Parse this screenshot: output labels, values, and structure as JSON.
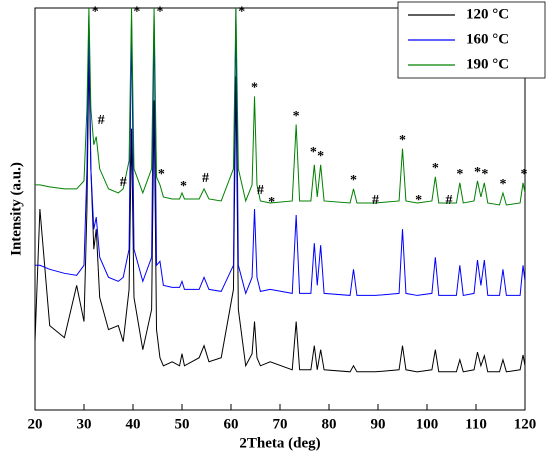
{
  "chart_data": {
    "type": "line",
    "xlabel": "2Theta (deg)",
    "ylabel": "Intensity (a.u.)",
    "xlim": [
      20,
      120
    ],
    "xticks": [
      20,
      30,
      40,
      50,
      60,
      70,
      80,
      90,
      100,
      110,
      120
    ],
    "ylim": [
      0,
      100
    ],
    "legend": "upper right",
    "x": [
      20,
      21,
      23,
      26,
      28.5,
      30,
      30.6,
      31,
      31.4,
      32,
      32.5,
      33.2,
      35,
      37,
      38,
      39.2,
      39.7,
      40.2,
      42,
      43.8,
      44.3,
      44.8,
      45.5,
      46.2,
      48,
      49.5,
      50,
      50.5,
      53.5,
      54.5,
      55.5,
      58,
      60.5,
      61,
      61.5,
      63,
      64.3,
      64.8,
      65.3,
      66,
      68,
      72.5,
      73.3,
      74,
      76.3,
      77,
      77.6,
      78.3,
      79,
      84.3,
      85,
      85.7,
      89.5,
      94.3,
      95,
      95.7,
      98,
      101,
      101.7,
      102.4,
      106,
      106.7,
      107.4,
      109.6,
      110.3,
      111,
      111.7,
      112.4,
      114.8,
      115.5,
      116.2,
      119,
      119.6,
      120
    ],
    "series": [
      {
        "name": "120 °C",
        "color": "#000000",
        "values": [
          17,
          50,
          21,
          18,
          31,
          22,
          50,
          88,
          60,
          40,
          45,
          28,
          20,
          21,
          17,
          30,
          70,
          28,
          15,
          25,
          77,
          20,
          13,
          11,
          12,
          11,
          14,
          11,
          13,
          16,
          12,
          13,
          30,
          83,
          25,
          11,
          14,
          22,
          13,
          11,
          12,
          10,
          22,
          10,
          10,
          16,
          10,
          15,
          10,
          9.5,
          11,
          9.5,
          9.5,
          10,
          16,
          10,
          9.5,
          10,
          15,
          9.5,
          9.5,
          12.5,
          9.5,
          10,
          14.4,
          11,
          13.5,
          9.5,
          9.5,
          12.5,
          9.5,
          10,
          13.7,
          11
        ]
      },
      {
        "name": "160 °C",
        "color": "#0000ff",
        "values": [
          36,
          36,
          35,
          34,
          33.5,
          36,
          60,
          98,
          60,
          45,
          48,
          38,
          33,
          32,
          33,
          40,
          97,
          40,
          32,
          38,
          98,
          36,
          37,
          31,
          30.5,
          30.5,
          32,
          30,
          30,
          33,
          30,
          29.5,
          36,
          100,
          36,
          29,
          33,
          50,
          33,
          29.5,
          30,
          29,
          48.5,
          29,
          29,
          41.5,
          31,
          41,
          29,
          28.5,
          35,
          28.5,
          28.5,
          29,
          45,
          29,
          28.5,
          29,
          38,
          28.5,
          28.5,
          36,
          28.5,
          29,
          37.3,
          31,
          37.3,
          28.5,
          28.5,
          35,
          28.5,
          28.5,
          36,
          32
        ]
      },
      {
        "name": "190 °C",
        "color": "#008000",
        "values": [
          56,
          56,
          55.5,
          55,
          55,
          57,
          75,
          100,
          75,
          66,
          68,
          60,
          55,
          54,
          55,
          62,
          100,
          60,
          54,
          60,
          100,
          58,
          56,
          53,
          52.5,
          52.5,
          54,
          52.5,
          52.5,
          55,
          52.5,
          52,
          60,
          100,
          60,
          52,
          56,
          78,
          56,
          52,
          51.5,
          52,
          71,
          52,
          52,
          61,
          53,
          61,
          52,
          51.5,
          55,
          51.5,
          51.5,
          52,
          65,
          52,
          51.5,
          52,
          58,
          51.5,
          51.5,
          56.5,
          51.5,
          52,
          57,
          53,
          56.5,
          51.5,
          51,
          54,
          51,
          51.5,
          56.5,
          54
        ]
      }
    ],
    "annotations": [
      {
        "text": "*",
        "x": 32.3,
        "y": 98
      },
      {
        "text": "*",
        "x": 40.8,
        "y": 98
      },
      {
        "text": "*",
        "x": 45.5,
        "y": 98
      },
      {
        "text": "*",
        "x": 62.2,
        "y": 98
      },
      {
        "text": "#",
        "x": 33.5,
        "y": 71
      },
      {
        "text": "#",
        "x": 38,
        "y": 55.5
      },
      {
        "text": "*",
        "x": 45.8,
        "y": 57.5
      },
      {
        "text": "*",
        "x": 50.3,
        "y": 54.5
      },
      {
        "text": "#",
        "x": 54.8,
        "y": 56.5
      },
      {
        "text": "*",
        "x": 64.8,
        "y": 79
      },
      {
        "text": "#",
        "x": 66,
        "y": 53.5
      },
      {
        "text": "*",
        "x": 68.3,
        "y": 50.5
      },
      {
        "text": "*",
        "x": 73.3,
        "y": 72
      },
      {
        "text": "*",
        "x": 76.8,
        "y": 63
      },
      {
        "text": "*",
        "x": 78.3,
        "y": 62
      },
      {
        "text": "*",
        "x": 85,
        "y": 56
      },
      {
        "text": "#",
        "x": 89.5,
        "y": 51
      },
      {
        "text": "*",
        "x": 95,
        "y": 66
      },
      {
        "text": "*",
        "x": 98.3,
        "y": 51
      },
      {
        "text": "*",
        "x": 101.7,
        "y": 59
      },
      {
        "text": "#",
        "x": 104.5,
        "y": 51
      },
      {
        "text": "*",
        "x": 106.7,
        "y": 57.5
      },
      {
        "text": "*",
        "x": 110.3,
        "y": 58
      },
      {
        "text": "*",
        "x": 111.8,
        "y": 57.5
      },
      {
        "text": "*",
        "x": 115.5,
        "y": 55
      },
      {
        "text": "*",
        "x": 119.8,
        "y": 57.5
      }
    ]
  }
}
